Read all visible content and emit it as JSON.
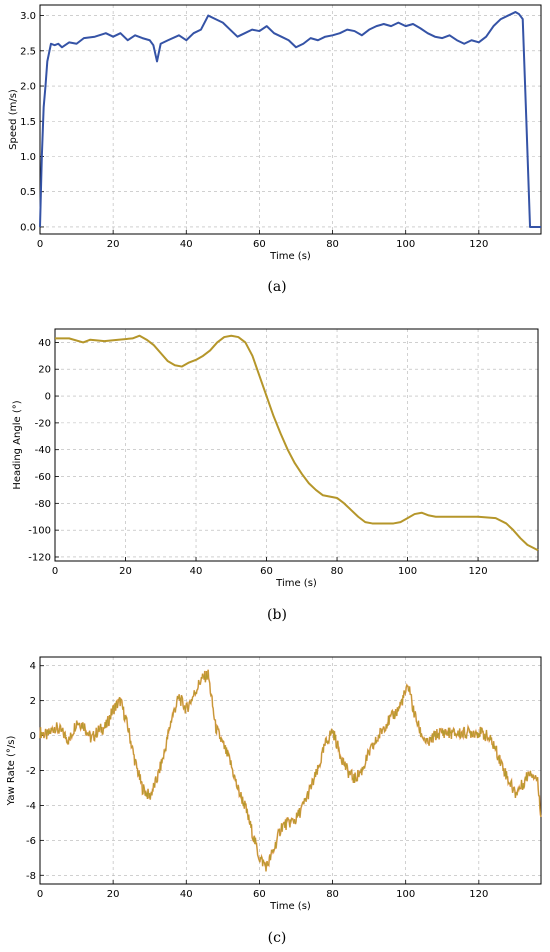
{
  "chart_data": [
    {
      "type": "line",
      "caption": "(a)",
      "xlabel": "Time (s)",
      "ylabel": "Speed (m/s)",
      "xlim": [
        0,
        137
      ],
      "ylim": [
        -0.1,
        3.15
      ],
      "xticks": [
        0,
        20,
        40,
        60,
        80,
        100,
        120
      ],
      "yticks": [
        0.0,
        0.5,
        1.0,
        1.5,
        2.0,
        2.5,
        3.0
      ],
      "ytick_labels": [
        "0.0",
        "0.5",
        "1.0",
        "1.5",
        "2.0",
        "2.5",
        "3.0"
      ],
      "grid": true,
      "color": "#3553a6",
      "x": [
        0,
        0.5,
        1,
        1.5,
        2,
        3,
        4,
        5,
        6,
        8,
        10,
        12,
        15,
        18,
        20,
        22,
        24,
        26,
        28,
        30,
        31,
        32,
        33,
        35,
        38,
        40,
        42,
        44,
        46,
        48,
        50,
        52,
        54,
        56,
        58,
        60,
        62,
        64,
        66,
        68,
        70,
        72,
        74,
        76,
        78,
        80,
        82,
        84,
        86,
        88,
        90,
        92,
        94,
        96,
        98,
        100,
        102,
        104,
        106,
        108,
        110,
        112,
        114,
        116,
        118,
        120,
        122,
        124,
        126,
        128,
        130,
        131,
        132,
        133,
        134,
        135,
        137
      ],
      "y": [
        0.0,
        1.0,
        1.7,
        2.0,
        2.35,
        2.6,
        2.58,
        2.6,
        2.55,
        2.62,
        2.6,
        2.68,
        2.7,
        2.75,
        2.7,
        2.75,
        2.65,
        2.72,
        2.68,
        2.65,
        2.58,
        2.35,
        2.6,
        2.65,
        2.72,
        2.65,
        2.75,
        2.8,
        3.0,
        2.95,
        2.9,
        2.8,
        2.7,
        2.75,
        2.8,
        2.78,
        2.85,
        2.75,
        2.7,
        2.65,
        2.55,
        2.6,
        2.68,
        2.65,
        2.7,
        2.72,
        2.75,
        2.8,
        2.78,
        2.72,
        2.8,
        2.85,
        2.88,
        2.85,
        2.9,
        2.85,
        2.88,
        2.82,
        2.75,
        2.7,
        2.68,
        2.72,
        2.65,
        2.6,
        2.65,
        2.62,
        2.7,
        2.85,
        2.95,
        3.0,
        3.05,
        3.02,
        2.95,
        1.5,
        0.0,
        0.0,
        0.0
      ]
    },
    {
      "type": "line",
      "caption": "(b)",
      "xlabel": "Time (s)",
      "ylabel": "Heading Angle (°)",
      "xlim": [
        0,
        137
      ],
      "ylim": [
        -123,
        50
      ],
      "xticks": [
        0,
        20,
        40,
        60,
        80,
        100,
        120
      ],
      "yticks": [
        40,
        20,
        0,
        -20,
        -40,
        -60,
        -80,
        -100,
        -120
      ],
      "grid": true,
      "color": "#b5962a",
      "x": [
        0,
        4,
        8,
        10,
        14,
        18,
        22,
        24,
        26,
        28,
        30,
        32,
        34,
        36,
        38,
        40,
        42,
        44,
        46,
        48,
        50,
        52,
        54,
        56,
        58,
        60,
        62,
        64,
        66,
        68,
        70,
        72,
        74,
        76,
        78,
        80,
        82,
        84,
        86,
        88,
        90,
        92,
        94,
        96,
        98,
        100,
        102,
        104,
        106,
        108,
        110,
        115,
        120,
        125,
        128,
        130,
        132,
        134,
        137
      ],
      "y": [
        43,
        43,
        40,
        42,
        41,
        42,
        43,
        45,
        42,
        38,
        32,
        26,
        23,
        22,
        25,
        27,
        30,
        34,
        40,
        44,
        45,
        44,
        40,
        30,
        15,
        0,
        -15,
        -28,
        -40,
        -50,
        -58,
        -65,
        -70,
        -74,
        -75,
        -76,
        -80,
        -85,
        -90,
        -94,
        -95,
        -95,
        -95,
        -95,
        -94,
        -91,
        -88,
        -87,
        -89,
        -90,
        -90,
        -90,
        -90,
        -91,
        -95,
        -100,
        -106,
        -111,
        -115
      ]
    },
    {
      "type": "line",
      "caption": "(c)",
      "xlabel": "Time (s)",
      "ylabel": "Yaw Rate (°/s)",
      "xlim": [
        0,
        137
      ],
      "ylim": [
        -8.5,
        4.5
      ],
      "xticks": [
        0,
        20,
        40,
        60,
        80,
        100,
        120
      ],
      "yticks": [
        4,
        2,
        0,
        -2,
        -4,
        -6,
        -8
      ],
      "grid": true,
      "color": "#b59a2f",
      "noise_color": "#e8802a",
      "x": [
        0,
        2,
        4,
        6,
        8,
        10,
        12,
        14,
        16,
        18,
        20,
        22,
        24,
        26,
        28,
        30,
        32,
        34,
        36,
        38,
        40,
        42,
        44,
        46,
        48,
        50,
        52,
        54,
        56,
        58,
        60,
        62,
        64,
        66,
        68,
        70,
        72,
        74,
        76,
        78,
        80,
        82,
        84,
        86,
        88,
        90,
        92,
        94,
        96,
        98,
        100,
        101,
        102,
        104,
        106,
        108,
        110,
        114,
        118,
        120,
        122,
        124,
        126,
        128,
        130,
        132,
        134,
        136,
        137
      ],
      "y": [
        0.2,
        0.0,
        0.5,
        0.2,
        -0.3,
        0.8,
        0.6,
        -0.2,
        0.3,
        0.5,
        1.5,
        2.0,
        0.5,
        -1.5,
        -3.0,
        -3.5,
        -2.5,
        -1.0,
        1.0,
        2.2,
        1.5,
        2.3,
        3.2,
        3.5,
        0.5,
        -0.5,
        -1.5,
        -3.0,
        -4.0,
        -5.5,
        -7.0,
        -7.5,
        -6.5,
        -5.2,
        -5.0,
        -4.8,
        -4.0,
        -3.0,
        -2.0,
        -0.5,
        0.3,
        -1.0,
        -2.0,
        -2.5,
        -2.0,
        -1.0,
        -0.3,
        0.5,
        1.0,
        1.5,
        2.5,
        2.8,
        1.5,
        0.2,
        -0.5,
        0.0,
        0.2,
        0.1,
        0.2,
        0.2,
        0.0,
        -0.5,
        -1.5,
        -2.5,
        -3.3,
        -2.8,
        -2.0,
        -2.5,
        -4.5
      ]
    }
  ]
}
